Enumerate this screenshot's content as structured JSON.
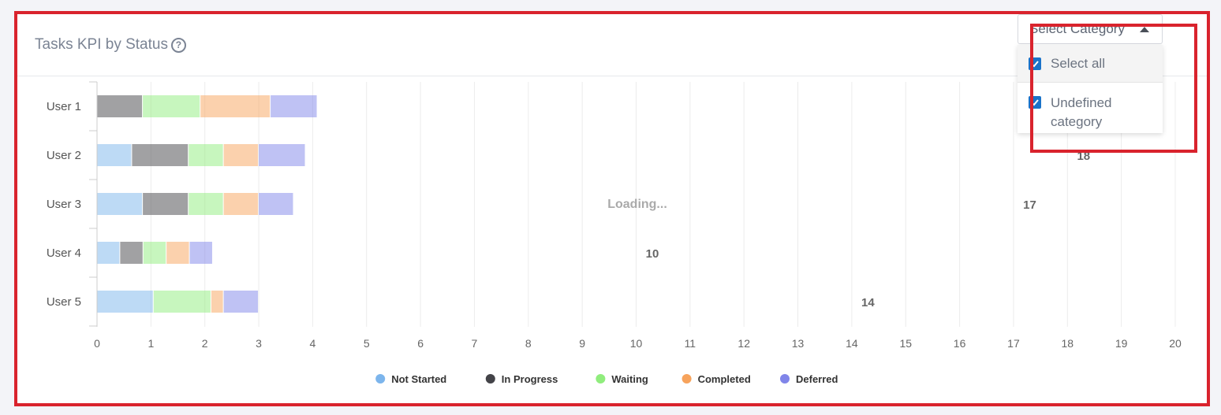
{
  "card": {
    "title": "Tasks KPI by Status",
    "help_icon": "question-circle-icon",
    "loading_text": "Loading..."
  },
  "category_select": {
    "label": "Select Category",
    "open": true,
    "options": [
      {
        "label": "Select all",
        "checked": true
      },
      {
        "label": "Undefined",
        "label2": "category",
        "checked": true
      }
    ]
  },
  "chart_data": {
    "type": "bar",
    "orientation": "horizontal",
    "stacked": true,
    "categories": [
      "User 1",
      "User 2",
      "User 3",
      "User 4",
      "User 5"
    ],
    "xlim": [
      0,
      20
    ],
    "xticks": [
      0,
      1,
      2,
      3,
      4,
      5,
      6,
      7,
      8,
      9,
      10,
      11,
      12,
      13,
      14,
      15,
      16,
      17,
      18,
      19,
      20
    ],
    "series": [
      {
        "name": "Not Started",
        "color": "#7cb5ec",
        "values": [
          0,
          0.65,
          0.85,
          0.43,
          1.05
        ]
      },
      {
        "name": "In Progress",
        "color": "#434348",
        "values": [
          0.85,
          1.05,
          0.85,
          0.43,
          0
        ]
      },
      {
        "name": "Waiting",
        "color": "#90ed7d",
        "values": [
          1.07,
          0.65,
          0.65,
          0.43,
          1.07
        ]
      },
      {
        "name": "Completed",
        "color": "#f7a35c",
        "values": [
          1.3,
          0.65,
          0.65,
          0.43,
          0.23
        ]
      },
      {
        "name": "Deferred",
        "color": "#8085e9",
        "values": [
          0.87,
          0.87,
          0.65,
          0.43,
          0.65
        ]
      }
    ],
    "annotations": [
      {
        "text": "18",
        "x": 18.3,
        "row": "User 2"
      },
      {
        "text": "17",
        "x": 17.3,
        "row": "User 3"
      },
      {
        "text": "10",
        "x": 10.3,
        "row": "User 4"
      },
      {
        "text": "14",
        "x": 14.3,
        "row": "User 5"
      }
    ],
    "legend_position": "bottom-center",
    "grid": "vertical",
    "bar_opacity": 0.5
  }
}
